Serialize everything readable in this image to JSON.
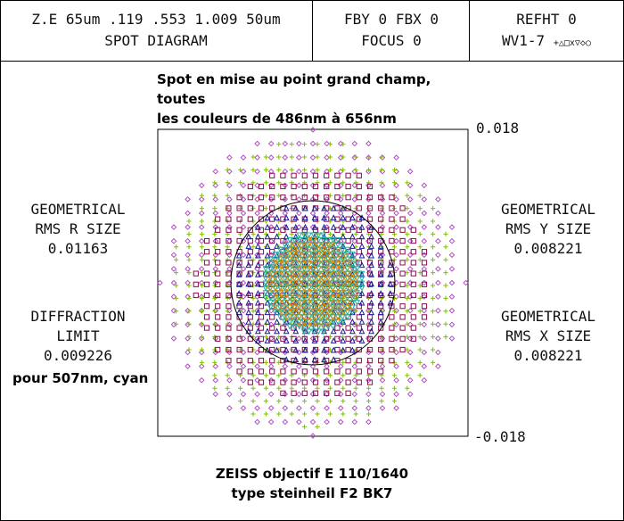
{
  "header": {
    "left": {
      "line1": "Z.E 65um .119 .553 1.009 50um",
      "line2": "SPOT DIAGRAM"
    },
    "middle": {
      "line1": "FBY 0 FBX 0",
      "line2": "FOCUS 0"
    },
    "right": {
      "line1": "REFHT 0",
      "line2": "WV1-7",
      "symbols": "+△□x▽◇○"
    }
  },
  "annotation_top": {
    "line1": "Spot en mise au point grand champ, toutes",
    "line2": "les couleurs de 486nm à 656nm"
  },
  "annotation_bottom": {
    "line1": "ZEISS objectif E 110/1640",
    "line2": "type steinheil F2 BK7"
  },
  "annotation_side": "pour 507nm, cyan",
  "scale": {
    "top": "0.018",
    "bottom": "-0.018"
  },
  "rms_r": {
    "line1": "GEOMETRICAL",
    "line2": "RMS R SIZE",
    "value": "0.01163"
  },
  "diffraction": {
    "line1": "DIFFRACTION",
    "line2": "LIMIT",
    "value": "0.009226"
  },
  "rms_y": {
    "line1": "GEOMETRICAL",
    "line2": "RMS Y SIZE",
    "value": "0.008221"
  },
  "rms_x": {
    "line1": "GEOMETRICAL",
    "line2": "RMS X SIZE",
    "value": "0.008221"
  },
  "colors": {
    "plus": "#7fbf00",
    "triangle": "#1a1a99",
    "square": "#8b0a50",
    "x": "#e08a00",
    "nabla": "#20b0a0",
    "diamond": "#b050c0",
    "circle": "#000000"
  }
}
